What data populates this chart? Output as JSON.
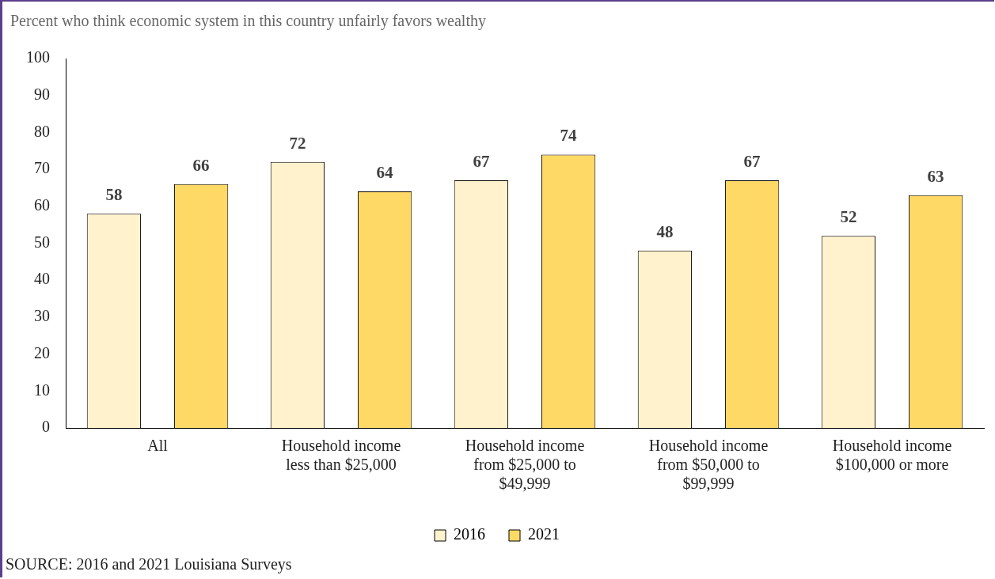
{
  "chart_data": {
    "type": "bar",
    "title": "Percent who think economic system in this country unfairly favors wealthy",
    "categories": [
      "All",
      "Household income less than $25,000",
      "Household income from $25,000 to $49,999",
      "Household income from $50,000 to $99,999",
      "Household income $100,000 or more"
    ],
    "series": [
      {
        "name": "2016",
        "color": "#fff2cc",
        "values": [
          58,
          72,
          67,
          48,
          52
        ]
      },
      {
        "name": "2021",
        "color": "#ffd966",
        "values": [
          66,
          64,
          74,
          67,
          63
        ]
      }
    ],
    "ylim": [
      0,
      100
    ],
    "yticks": [
      0,
      10,
      20,
      30,
      40,
      50,
      60,
      70,
      80,
      90,
      100
    ],
    "grid": false,
    "legend": "bottom",
    "data_labels": true,
    "annotations": [
      "SOURCE: 2016 and 2021 Louisiana Surveys"
    ]
  }
}
